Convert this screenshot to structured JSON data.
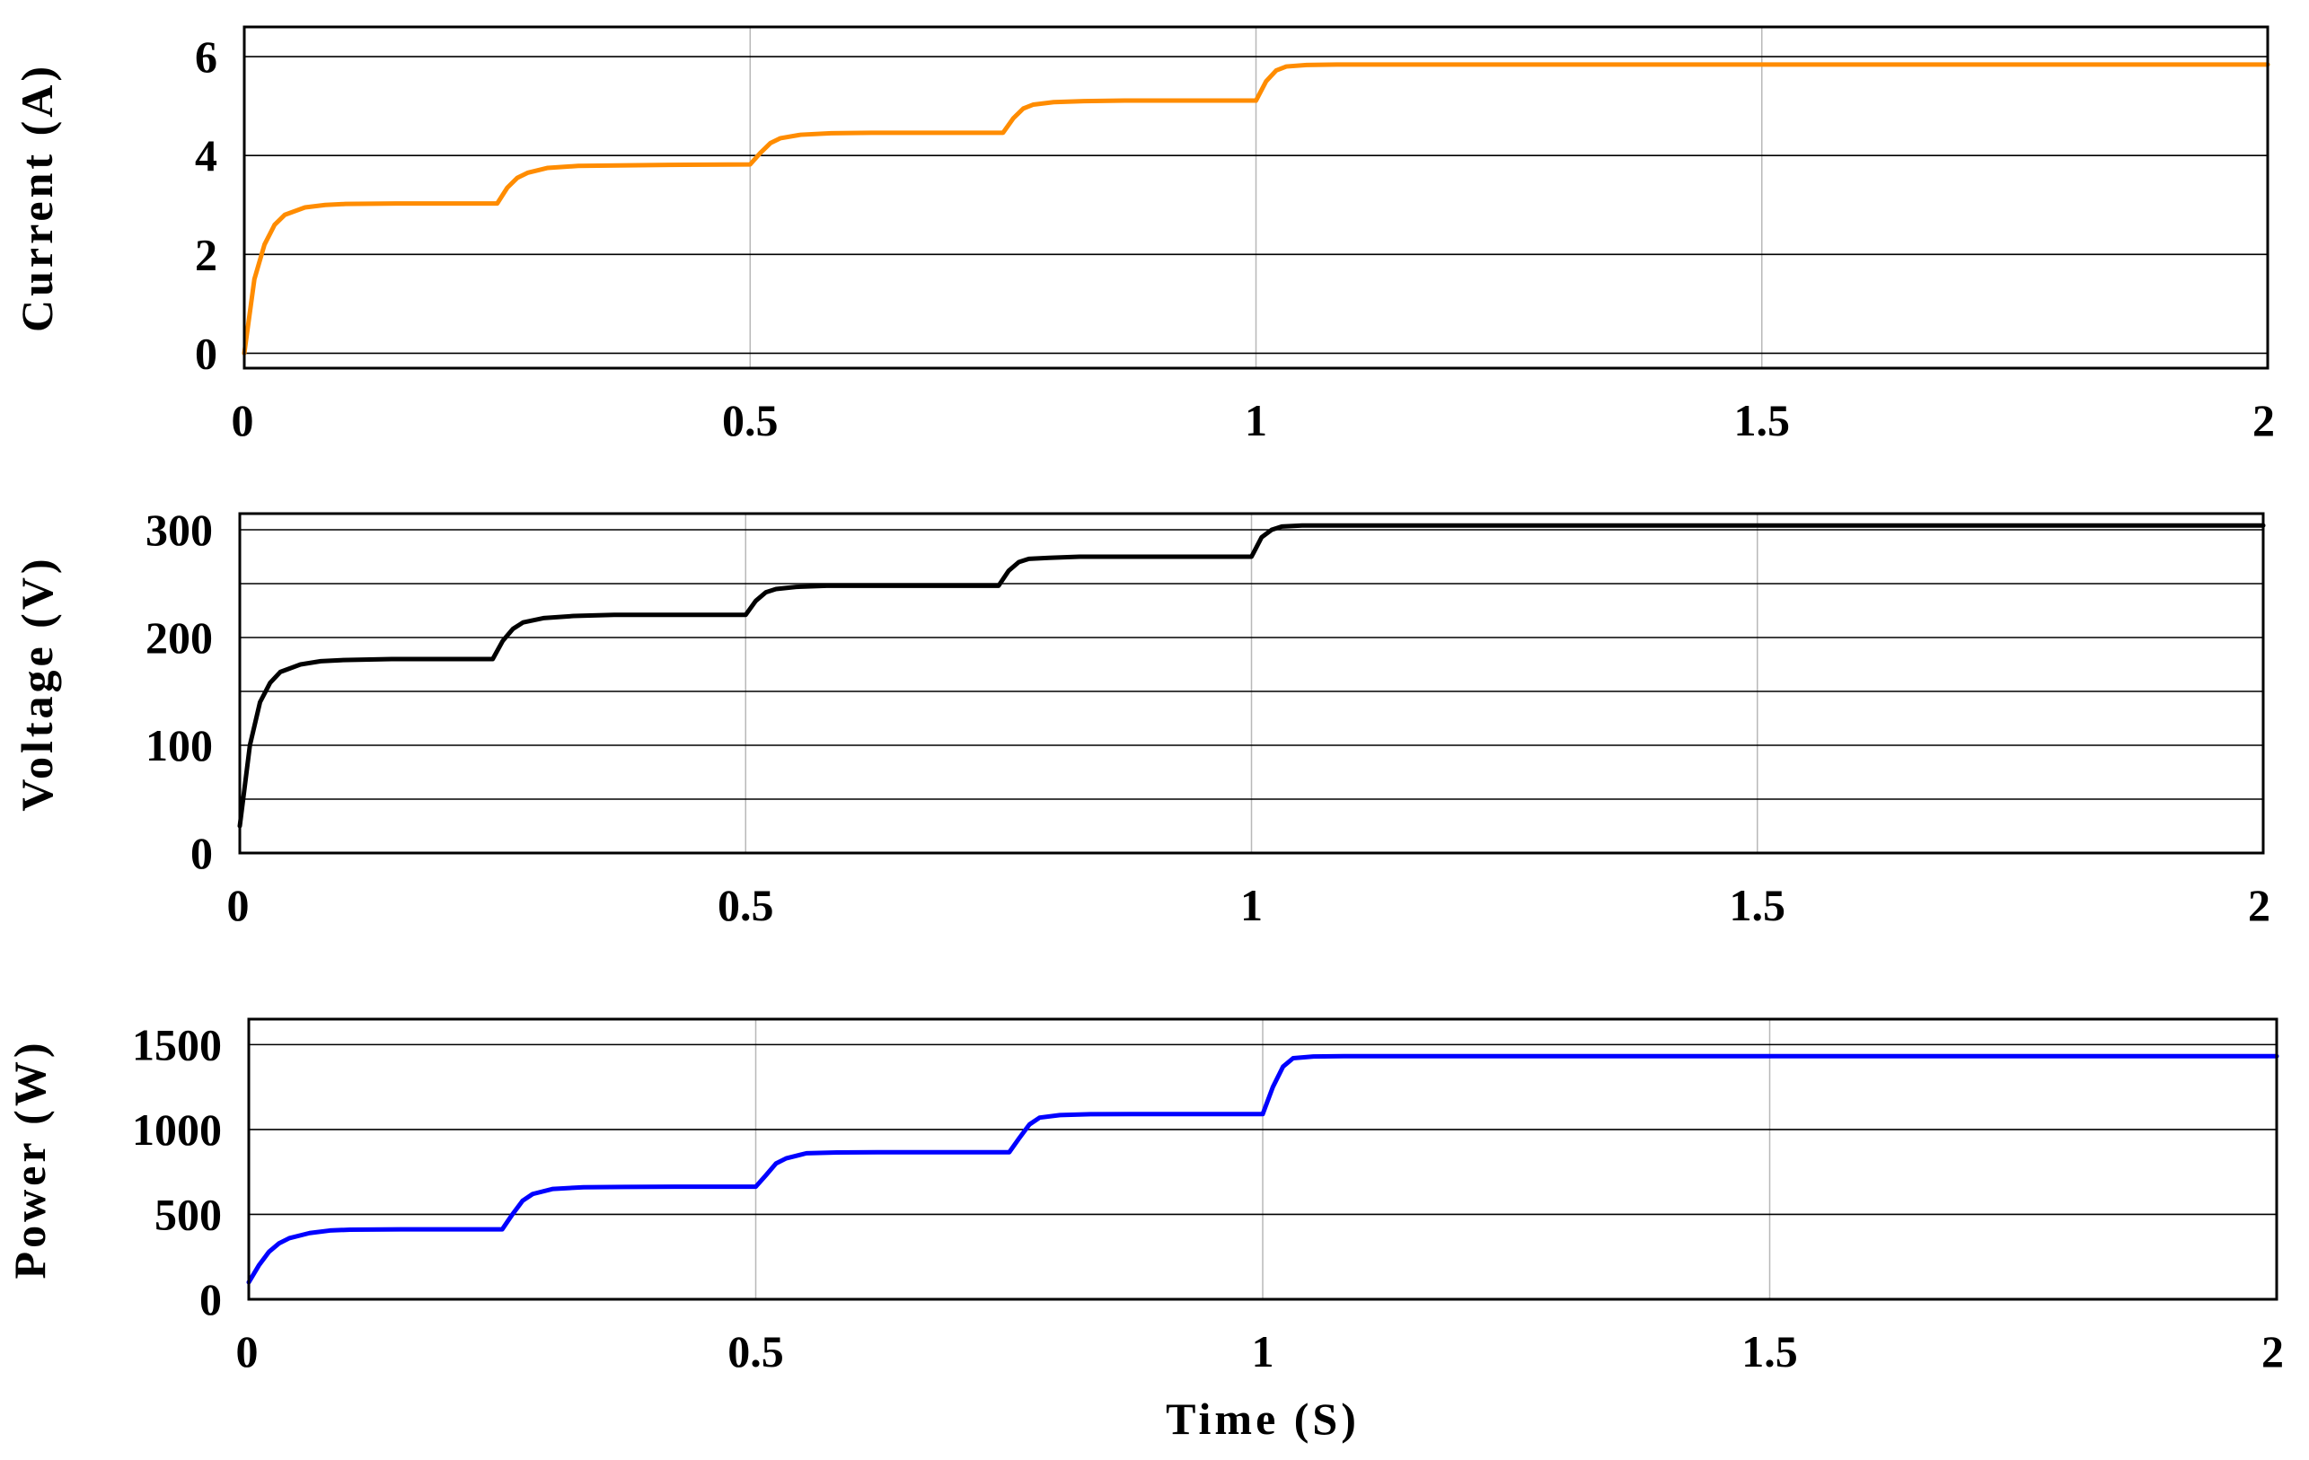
{
  "chart_data": [
    {
      "type": "line",
      "ylabel": "Current (A)",
      "xlabel": "",
      "xlim": [
        0,
        2
      ],
      "ylim": [
        -0.3,
        6.6
      ],
      "xticks": [
        0,
        0.5,
        1,
        1.5,
        2
      ],
      "xtick_labels": [
        "0",
        "0.5",
        "1",
        "1.5",
        "2"
      ],
      "yticks": [
        0,
        2,
        4,
        6
      ],
      "ytick_labels": [
        "0",
        "2",
        "4",
        "6"
      ],
      "ygrid": [
        0,
        2,
        4,
        6
      ],
      "grid": true,
      "color": "#ff8c00",
      "series": [
        {
          "x": [
            0,
            0.01,
            0.02,
            0.03,
            0.04,
            0.06,
            0.08,
            0.1,
            0.15,
            0.2,
            0.25,
            0.26,
            0.27,
            0.28,
            0.3,
            0.33,
            0.37,
            0.42,
            0.5,
            0.51,
            0.52,
            0.53,
            0.55,
            0.58,
            0.62,
            0.67,
            0.75,
            0.76,
            0.77,
            0.78,
            0.8,
            0.83,
            0.87,
            0.92,
            1.0,
            1.01,
            1.02,
            1.03,
            1.05,
            1.08,
            1.12,
            1.2,
            1.5,
            2.0
          ],
          "y": [
            0,
            1.5,
            2.2,
            2.6,
            2.8,
            2.95,
            3.0,
            3.02,
            3.03,
            3.03,
            3.03,
            3.35,
            3.55,
            3.65,
            3.75,
            3.79,
            3.8,
            3.81,
            3.82,
            4.05,
            4.25,
            4.35,
            4.42,
            4.45,
            4.46,
            4.46,
            4.46,
            4.75,
            4.95,
            5.03,
            5.08,
            5.1,
            5.11,
            5.11,
            5.11,
            5.5,
            5.72,
            5.8,
            5.83,
            5.84,
            5.84,
            5.84,
            5.84,
            5.84
          ]
        }
      ]
    },
    {
      "type": "line",
      "ylabel": "Voltage (V)",
      "xlabel": "",
      "xlim": [
        0,
        2
      ],
      "ylim": [
        0,
        315
      ],
      "xticks": [
        0,
        0.5,
        1,
        1.5,
        2
      ],
      "xtick_labels": [
        "0",
        "0.5",
        "1",
        "1.5",
        "2"
      ],
      "yticks": [
        0,
        100,
        200,
        300
      ],
      "ytick_labels": [
        "0",
        "100",
        "200",
        "300"
      ],
      "ygrid": [
        50,
        100,
        150,
        200,
        250,
        300
      ],
      "grid": true,
      "color": "#000000",
      "series": [
        {
          "x": [
            0,
            0.01,
            0.02,
            0.03,
            0.04,
            0.06,
            0.08,
            0.1,
            0.15,
            0.2,
            0.25,
            0.26,
            0.27,
            0.28,
            0.3,
            0.33,
            0.37,
            0.42,
            0.5,
            0.51,
            0.52,
            0.53,
            0.55,
            0.58,
            0.62,
            0.67,
            0.75,
            0.76,
            0.77,
            0.78,
            0.8,
            0.83,
            0.87,
            0.92,
            1.0,
            1.01,
            1.02,
            1.03,
            1.05,
            1.08,
            1.12,
            1.2,
            1.5,
            2.0
          ],
          "y": [
            25,
            100,
            140,
            158,
            168,
            175,
            178,
            179,
            180,
            180,
            180,
            197,
            208,
            214,
            218,
            220,
            221,
            221,
            221,
            234,
            242,
            245,
            247,
            248,
            248,
            248,
            248,
            262,
            270,
            273,
            274,
            275,
            275,
            275,
            275,
            293,
            300,
            303,
            304,
            304,
            304,
            304,
            304,
            304
          ]
        }
      ]
    },
    {
      "type": "line",
      "ylabel": "Power (W)",
      "xlabel": "Time (S)",
      "xlim": [
        0,
        2
      ],
      "ylim": [
        0,
        1650
      ],
      "xticks": [
        0,
        0.5,
        1,
        1.5,
        2
      ],
      "xtick_labels": [
        "0",
        "0.5",
        "1",
        "1.5",
        "2"
      ],
      "yticks": [
        0,
        500,
        1000,
        1500
      ],
      "ytick_labels": [
        "0",
        "500",
        "1000",
        "1500"
      ],
      "ygrid": [
        500,
        1000,
        1500
      ],
      "grid": true,
      "color": "#0000ff",
      "series": [
        {
          "x": [
            0,
            0.01,
            0.02,
            0.03,
            0.04,
            0.06,
            0.08,
            0.1,
            0.15,
            0.2,
            0.25,
            0.26,
            0.27,
            0.28,
            0.3,
            0.33,
            0.37,
            0.42,
            0.5,
            0.51,
            0.52,
            0.53,
            0.55,
            0.58,
            0.62,
            0.67,
            0.75,
            0.76,
            0.77,
            0.78,
            0.8,
            0.83,
            0.87,
            0.92,
            1.0,
            1.01,
            1.02,
            1.03,
            1.05,
            1.08,
            1.12,
            1.2,
            1.5,
            2.0
          ],
          "y": [
            100,
            200,
            280,
            330,
            360,
            390,
            405,
            410,
            412,
            412,
            412,
            500,
            580,
            620,
            650,
            660,
            662,
            663,
            663,
            730,
            800,
            830,
            860,
            865,
            866,
            866,
            866,
            950,
            1030,
            1070,
            1085,
            1090,
            1091,
            1091,
            1091,
            1250,
            1370,
            1420,
            1430,
            1432,
            1432,
            1432,
            1432,
            1432
          ]
        }
      ]
    }
  ]
}
